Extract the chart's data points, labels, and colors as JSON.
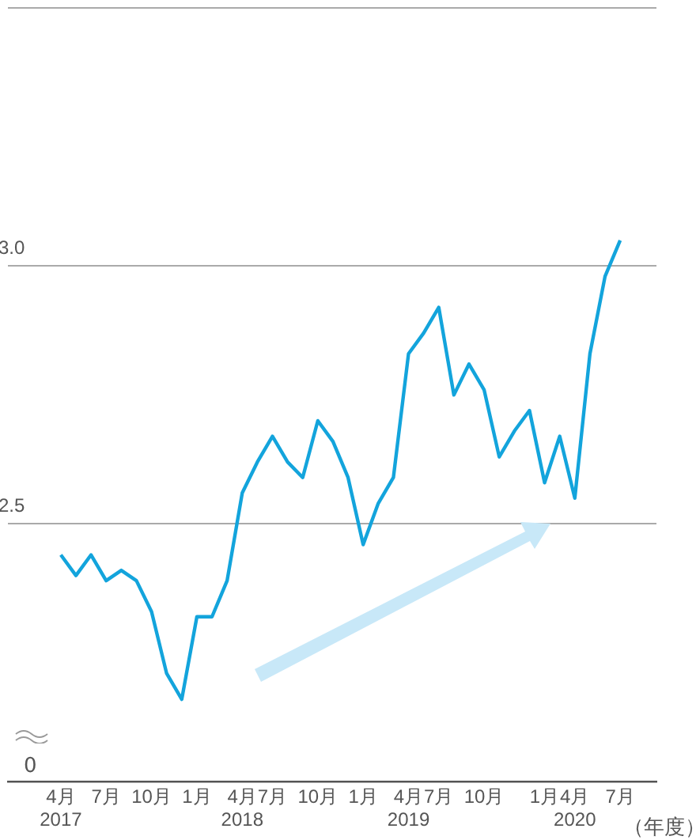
{
  "chart_data": {
    "type": "line",
    "xlabel": "（年度）",
    "categories": [
      "4月\n2017",
      null,
      null,
      "7月",
      null,
      null,
      "10月",
      null,
      null,
      "1月",
      null,
      null,
      "4月\n2018",
      null,
      "7月",
      null,
      null,
      "10月",
      null,
      null,
      "1月",
      null,
      null,
      "4月\n2019",
      null,
      "7月",
      null,
      null,
      "10月",
      null,
      null,
      null,
      "1月",
      null,
      "4月\n2020",
      null,
      null,
      "7月"
    ],
    "series": [
      {
        "color": "#13a4dc",
        "values": [
          2.44,
          2.4,
          2.44,
          2.39,
          2.41,
          2.39,
          2.33,
          2.21,
          2.16,
          2.32,
          2.32,
          2.39,
          2.56,
          2.62,
          2.67,
          2.62,
          2.59,
          2.7,
          2.66,
          2.59,
          2.46,
          2.54,
          2.59,
          2.83,
          2.87,
          2.92,
          2.75,
          2.81,
          2.76,
          2.63,
          2.68,
          2.72,
          2.58,
          2.67,
          2.55,
          2.83,
          2.98,
          3.05
        ]
      }
    ],
    "ylim": [
      2.0,
      3.5
    ],
    "yticks": [
      2.5,
      {
        "value": 3.0,
        "label": "3.0"
      },
      {
        "value": 3.5,
        "label": null
      }
    ],
    "annotations": [
      "0"
    ],
    "grid": "y",
    "marker": "none",
    "line_style": "solid",
    "legend": false
  }
}
